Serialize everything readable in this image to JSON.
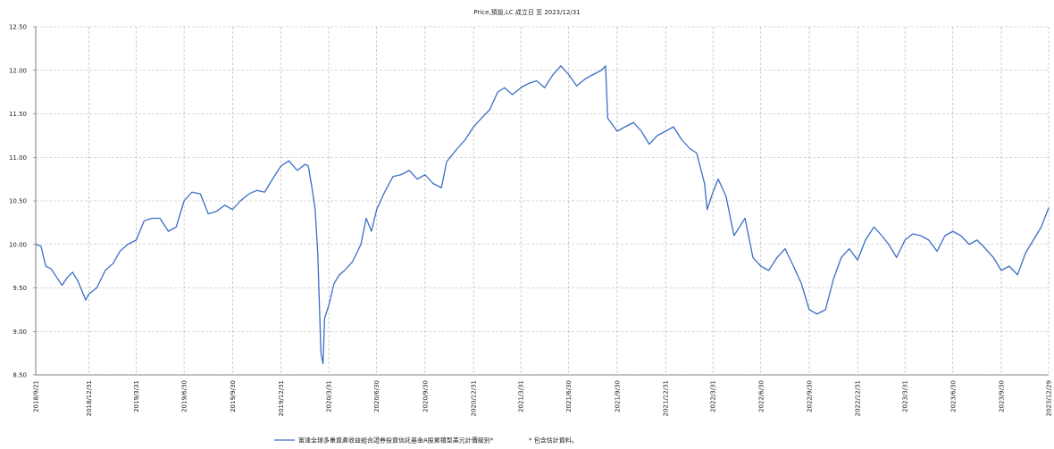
{
  "chart_data": {
    "type": "line",
    "title": "Price,預設,LC 成立日 至 2023/12/31",
    "note": "* 包含估計資料。",
    "grid": true,
    "x": [
      "2018/9/21",
      "2018/10/1",
      "2018/10/10",
      "2018/10/20",
      "2018/10/31",
      "2018/11/10",
      "2018/11/20",
      "2018/11/30",
      "2018/12/10",
      "2018/12/25",
      "2018/12/31",
      "2019/1/15",
      "2019/1/31",
      "2019/2/15",
      "2019/2/28",
      "2019/3/15",
      "2019/3/31",
      "2019/4/15",
      "2019/4/30",
      "2019/5/15",
      "2019/5/31",
      "2019/6/15",
      "2019/6/30",
      "2019/7/15",
      "2019/7/31",
      "2019/8/15",
      "2019/8/31",
      "2019/9/15",
      "2019/9/30",
      "2019/10/15",
      "2019/10/31",
      "2019/11/15",
      "2019/11/30",
      "2019/12/15",
      "2019/12/31",
      "2020/1/15",
      "2020/1/31",
      "2020/2/15",
      "2020/2/21",
      "2020/2/28",
      "2020/3/5",
      "2020/3/10",
      "2020/3/16",
      "2020/3/20",
      "2020/3/23",
      "2020/3/31",
      "2020/4/10",
      "2020/4/20",
      "2020/4/30",
      "2020/5/15",
      "2020/5/31",
      "2020/6/10",
      "2020/6/20",
      "2020/6/30",
      "2020/7/15",
      "2020/7/31",
      "2020/8/15",
      "2020/8/31",
      "2020/9/15",
      "2020/9/30",
      "2020/10/15",
      "2020/10/31",
      "2020/11/10",
      "2020/11/30",
      "2020/12/15",
      "2020/12/31",
      "2021/1/15",
      "2021/1/31",
      "2021/2/15",
      "2021/2/28",
      "2021/3/15",
      "2021/3/31",
      "2021/4/15",
      "2021/4/30",
      "2021/5/15",
      "2021/5/31",
      "2021/6/15",
      "2021/6/30",
      "2021/7/15",
      "2021/7/31",
      "2021/8/15",
      "2021/8/31",
      "2021/9/8",
      "2021/9/12",
      "2021/9/30",
      "2021/10/15",
      "2021/10/31",
      "2021/11/15",
      "2021/11/30",
      "2021/12/15",
      "2021/12/31",
      "2022/1/15",
      "2022/1/31",
      "2022/2/15",
      "2022/2/28",
      "2022/3/15",
      "2022/3/20",
      "2022/3/31",
      "2022/4/10",
      "2022/4/25",
      "2022/5/10",
      "2022/5/31",
      "2022/6/15",
      "2022/6/30",
      "2022/7/15",
      "2022/7/31",
      "2022/8/15",
      "2022/8/31",
      "2022/9/15",
      "2022/9/30",
      "2022/10/15",
      "2022/10/31",
      "2022/11/15",
      "2022/11/30",
      "2022/12/15",
      "2022/12/31",
      "2023/1/15",
      "2023/1/31",
      "2023/2/15",
      "2023/2/28",
      "2023/3/15",
      "2023/3/31",
      "2023/4/15",
      "2023/4/30",
      "2023/5/15",
      "2023/5/31",
      "2023/6/15",
      "2023/6/30",
      "2023/7/15",
      "2023/7/31",
      "2023/8/15",
      "2023/8/31",
      "2023/9/15",
      "2023/9/30",
      "2023/10/15",
      "2023/10/31",
      "2023/11/15",
      "2023/11/30",
      "2023/12/15",
      "2023/12/29"
    ],
    "series": [
      {
        "name": "富達全球多重資產收益組合證券投資信託基金A股累積型美元計價級別*",
        "color": "#3a6fc4",
        "values": [
          10.0,
          9.98,
          9.75,
          9.72,
          9.62,
          9.53,
          9.62,
          9.68,
          9.58,
          9.36,
          9.43,
          9.5,
          9.7,
          9.78,
          9.92,
          10.0,
          10.05,
          10.27,
          10.3,
          10.3,
          10.15,
          10.2,
          10.5,
          10.6,
          10.58,
          10.35,
          10.38,
          10.45,
          10.4,
          10.5,
          10.58,
          10.62,
          10.6,
          10.75,
          10.9,
          10.96,
          10.85,
          10.92,
          10.9,
          10.65,
          10.4,
          9.9,
          8.75,
          8.63,
          9.15,
          9.3,
          9.55,
          9.65,
          9.7,
          9.8,
          10.0,
          10.3,
          10.15,
          10.4,
          10.6,
          10.78,
          10.8,
          10.85,
          10.75,
          10.8,
          10.7,
          10.65,
          10.95,
          11.1,
          11.2,
          11.35,
          11.45,
          11.55,
          11.75,
          11.8,
          11.72,
          11.8,
          11.85,
          11.88,
          11.8,
          11.95,
          12.05,
          11.95,
          11.82,
          11.9,
          11.95,
          12.0,
          12.05,
          11.45,
          11.3,
          11.35,
          11.4,
          11.3,
          11.15,
          11.25,
          11.3,
          11.35,
          11.2,
          11.1,
          11.05,
          10.7,
          10.4,
          10.6,
          10.75,
          10.55,
          10.1,
          10.3,
          9.85,
          9.75,
          9.7,
          9.85,
          9.95,
          9.75,
          9.55,
          9.25,
          9.2,
          9.25,
          9.6,
          9.85,
          9.95,
          9.82,
          10.05,
          10.2,
          10.1,
          10.0,
          9.85,
          10.05,
          10.12,
          10.1,
          10.05,
          9.92,
          10.1,
          10.15,
          10.1,
          10.0,
          10.05,
          9.95,
          9.85,
          9.7,
          9.75,
          9.65,
          9.9,
          10.05,
          10.2,
          10.42
        ]
      }
    ],
    "xlim": [
      "2018/9/21",
      "2023/12/29"
    ],
    "xticks": [
      "2018/9/21",
      "2018/12/31",
      "2019/3/31",
      "2019/6/30",
      "2019/9/30",
      "2019/12/31",
      "2020/3/31",
      "2020/6/30",
      "2020/9/30",
      "2020/12/31",
      "2021/3/31",
      "2021/6/30",
      "2021/9/30",
      "2021/12/31",
      "2022/3/31",
      "2022/6/30",
      "2022/9/30",
      "2022/12/31",
      "2023/3/31",
      "2023/6/30",
      "2023/9/30",
      "2023/12/29"
    ],
    "ylim": [
      8.5,
      12.5
    ],
    "yticks": [
      {
        "value": 8.5,
        "label": "8.50"
      },
      {
        "value": 9,
        "label": "9.00"
      },
      {
        "value": 9.5,
        "label": "9.50"
      },
      {
        "value": 10,
        "label": "10.00"
      },
      {
        "value": 10.5,
        "label": "10.50"
      },
      {
        "value": 11,
        "label": "11.00"
      },
      {
        "value": 11.5,
        "label": "11.50"
      },
      {
        "value": 12,
        "label": "12.00"
      },
      {
        "value": 12.5,
        "label": "12.50"
      }
    ]
  }
}
